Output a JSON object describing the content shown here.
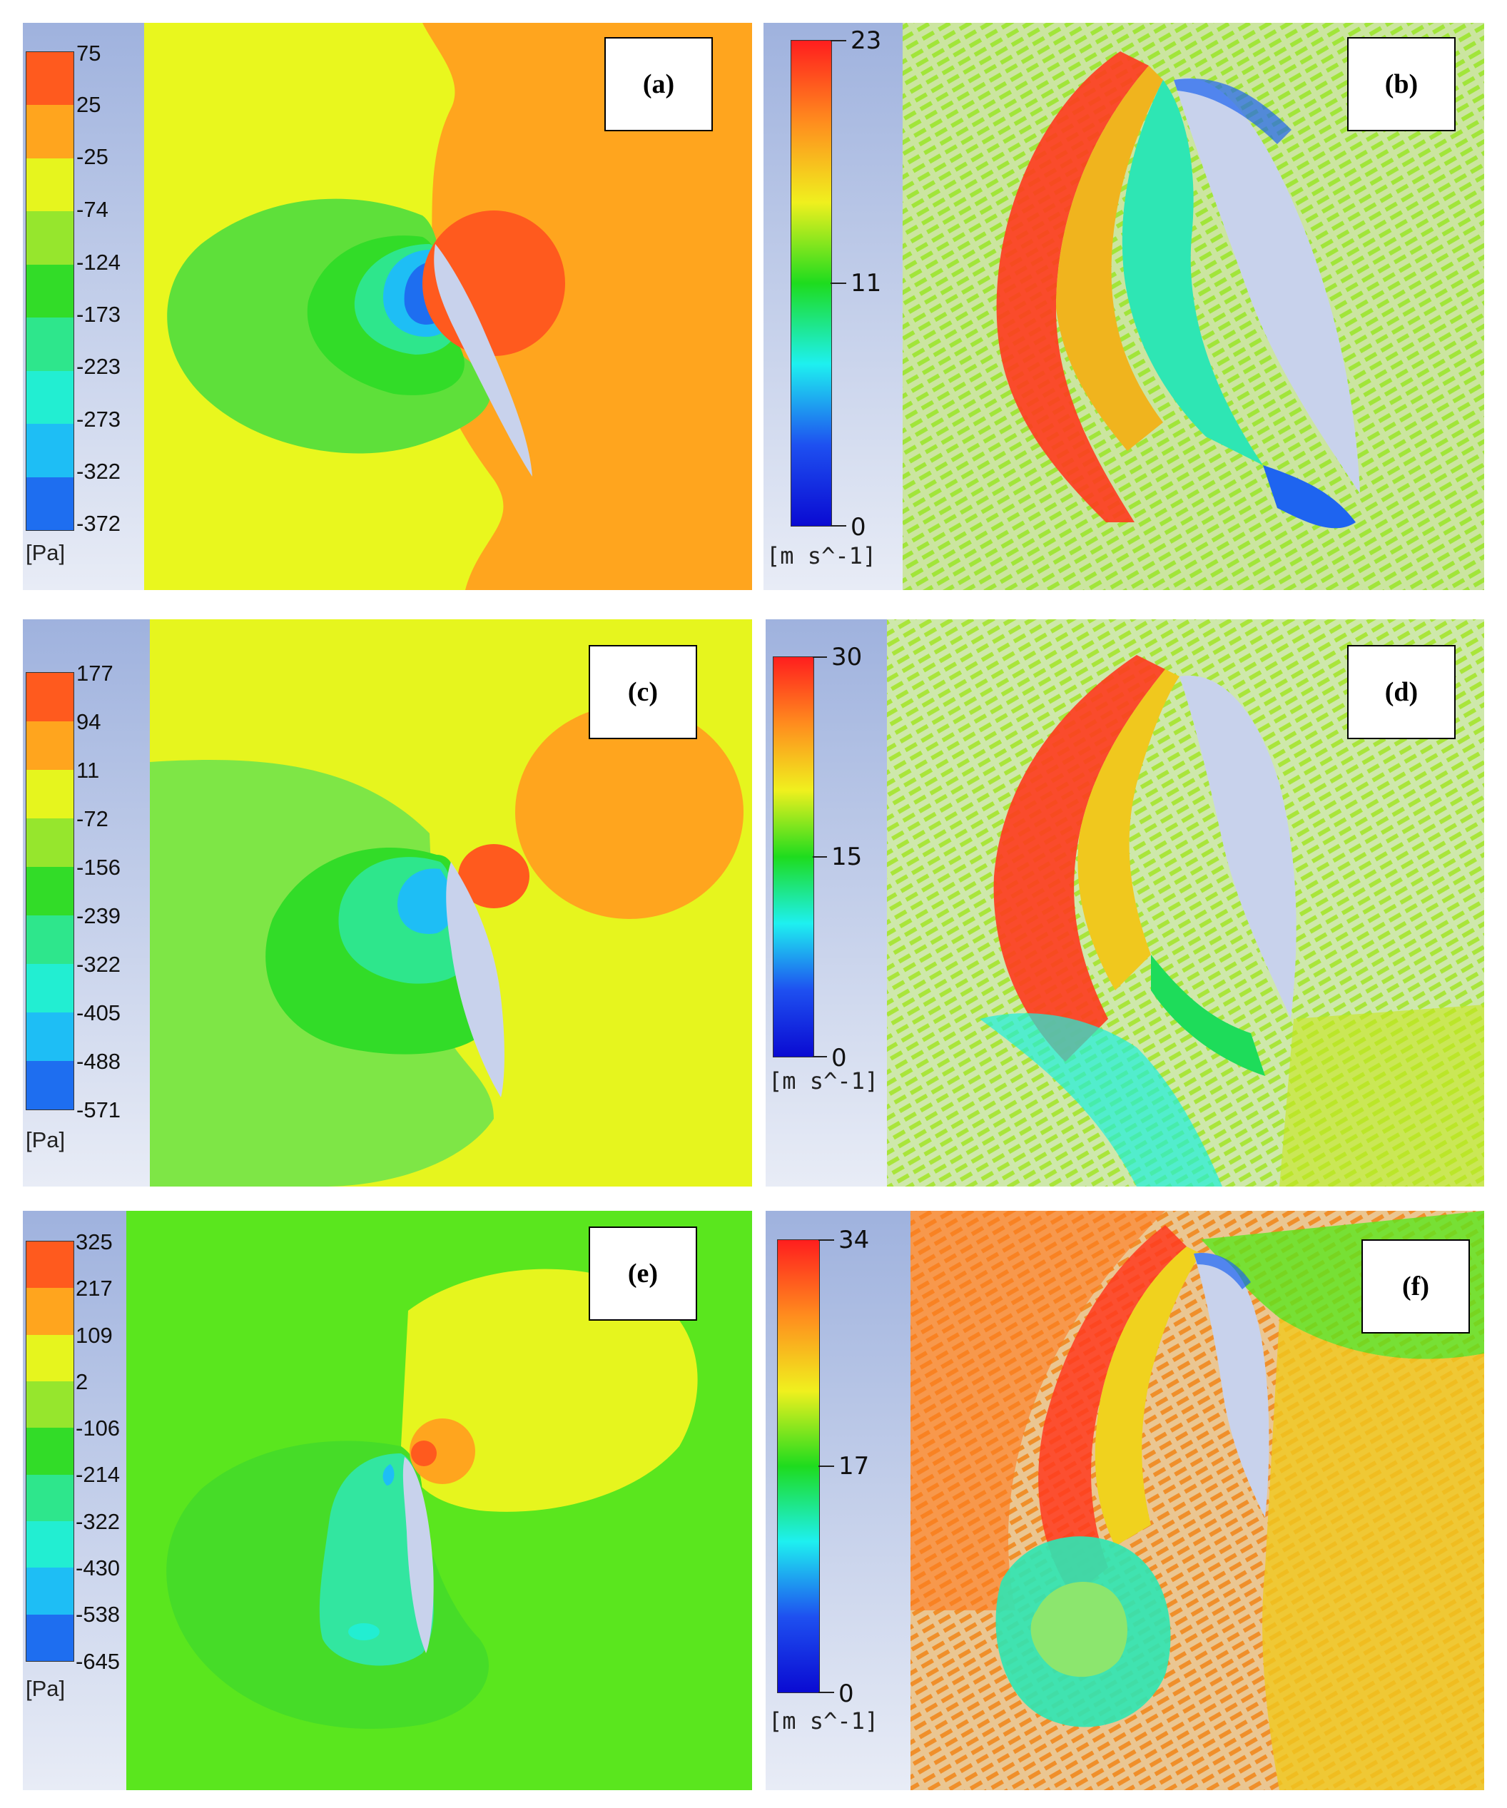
{
  "panels": {
    "a": {
      "label": "(a)",
      "unit": "[Pa]",
      "ticks": [
        "75",
        "25",
        "-25",
        "-74",
        "-124",
        "-173",
        "-223",
        "-273",
        "-322",
        "-372"
      ]
    },
    "b": {
      "label": "(b)",
      "unit": "[m s^-1]",
      "ticks": [
        "23",
        "11",
        "0"
      ]
    },
    "c": {
      "label": "(c)",
      "unit": "[Pa]",
      "ticks": [
        "177",
        "94",
        "11",
        "-72",
        "-156",
        "-239",
        "-322",
        "-405",
        "-488",
        "-571"
      ]
    },
    "d": {
      "label": "(d)",
      "unit": "[m s^-1]",
      "ticks": [
        "30",
        "15",
        "0"
      ]
    },
    "e": {
      "label": "(e)",
      "unit": "[Pa]",
      "ticks": [
        "325",
        "217",
        "109",
        "2",
        "-106",
        "-214",
        "-322",
        "-430",
        "-538",
        "-645"
      ]
    },
    "f": {
      "label": "(f)",
      "unit": "[m s^-1]",
      "ticks": [
        "34",
        "17",
        "0"
      ]
    }
  },
  "colors": {
    "pressure_bands": [
      "#ff5a1e",
      "#ffa51e",
      "#e6f51e",
      "#96e62d",
      "#32dc28",
      "#2ee68c",
      "#22eed2",
      "#1ebef5",
      "#1e6ef0",
      "#1432e6"
    ],
    "velocity_gradient": [
      "#ff1e1e",
      "#ff8c1e",
      "#f0f01e",
      "#1edc1e",
      "#1ef0f0",
      "#1e50f0",
      "#0a0ad2"
    ],
    "airfoil": "#c8d2ec"
  }
}
